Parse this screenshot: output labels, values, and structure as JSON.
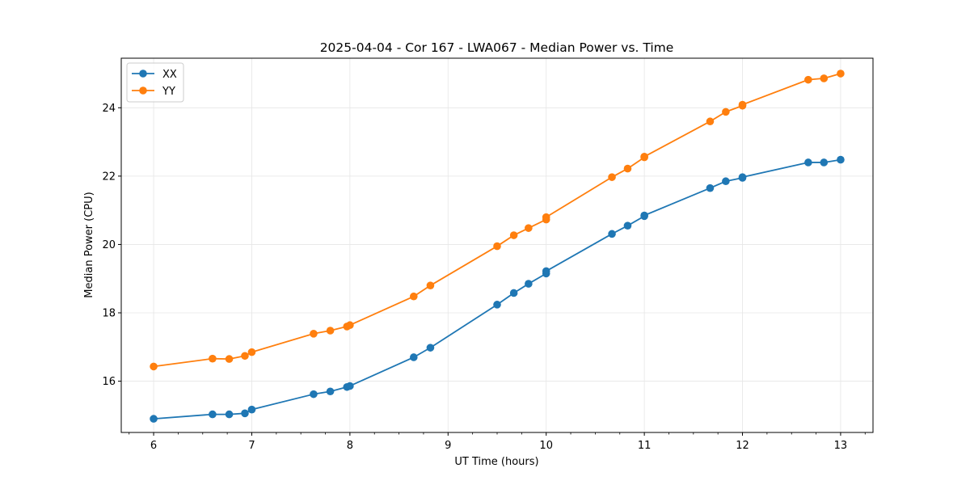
{
  "chart_data": {
    "type": "line",
    "title": "2025-04-04 - Cor 167 - LWA067 - Median Power vs. Time",
    "xlabel": "UT Time (hours)",
    "ylabel": "Median Power (CPU)",
    "xlim": [
      5.67,
      13.33
    ],
    "ylim": [
      14.5,
      25.45
    ],
    "xticks": [
      6,
      7,
      8,
      9,
      10,
      11,
      12,
      13
    ],
    "xtick_labels": [
      "6",
      "7",
      "8",
      "9",
      "10",
      "11",
      "12",
      "13"
    ],
    "xminor_step": 0.25,
    "yticks": [
      16,
      18,
      20,
      22,
      24
    ],
    "ytick_labels": [
      "16",
      "18",
      "20",
      "22",
      "24"
    ],
    "grid": true,
    "legend_position": "top-left",
    "x": [
      6.0,
      6.6,
      6.77,
      6.93,
      7.0,
      7.63,
      7.8,
      7.97,
      8.0,
      8.65,
      8.82,
      9.5,
      9.67,
      9.82,
      10.0,
      10.0,
      10.67,
      10.83,
      11.0,
      11.0,
      11.67,
      11.83,
      12.0,
      12.0,
      12.67,
      12.83,
      13.0
    ],
    "series": [
      {
        "name": "XX",
        "color": "#1f77b4",
        "values": [
          14.9,
          15.03,
          15.03,
          15.06,
          15.17,
          15.62,
          15.7,
          15.83,
          15.86,
          16.7,
          16.98,
          18.24,
          18.58,
          18.85,
          19.15,
          19.22,
          20.31,
          20.55,
          20.83,
          20.85,
          21.65,
          21.85,
          21.95,
          21.97,
          22.4,
          22.4,
          22.48
        ]
      },
      {
        "name": "YY",
        "color": "#ff7f0e",
        "values": [
          16.43,
          16.66,
          16.65,
          16.74,
          16.85,
          17.39,
          17.48,
          17.6,
          17.64,
          18.48,
          18.8,
          19.95,
          20.27,
          20.48,
          20.73,
          20.8,
          21.97,
          22.22,
          22.55,
          22.57,
          23.6,
          23.88,
          24.06,
          24.09,
          24.82,
          24.86,
          25.0
        ]
      }
    ]
  }
}
